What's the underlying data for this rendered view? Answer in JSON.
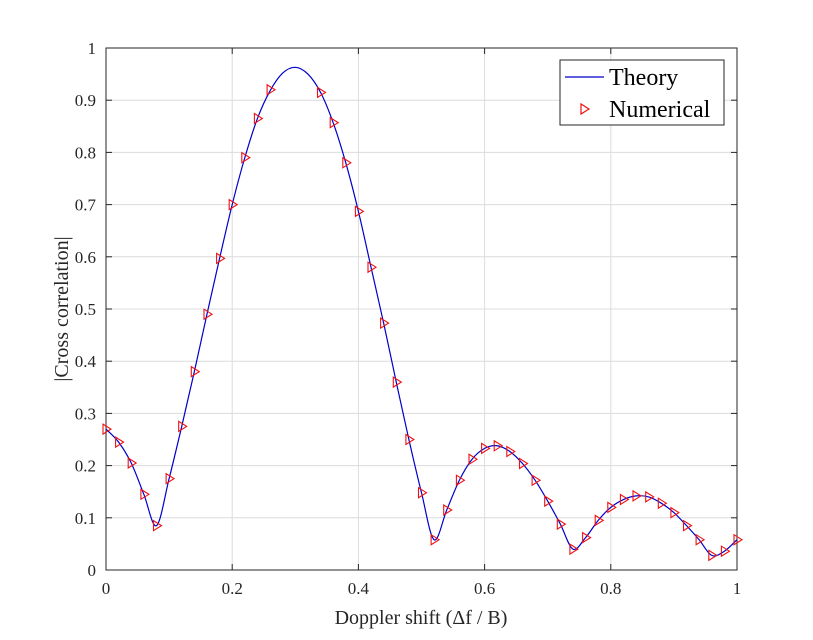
{
  "chart_data": {
    "type": "line",
    "title": "",
    "xlabel": "Doppler shift (Δf / B)",
    "ylabel": "|Cross correlation|",
    "xlim": [
      0,
      1
    ],
    "ylim": [
      0,
      1
    ],
    "x_ticks": [
      0,
      0.2,
      0.4,
      0.6,
      0.8,
      1
    ],
    "x_tick_labels": [
      "0",
      "0.2",
      "0.4",
      "0.6",
      "0.8",
      "1"
    ],
    "y_ticks": [
      0,
      0.1,
      0.2,
      0.3,
      0.4,
      0.5,
      0.6,
      0.7,
      0.8,
      0.9,
      1
    ],
    "y_tick_labels": [
      "0",
      "0.1",
      "0.2",
      "0.3",
      "0.4",
      "0.5",
      "0.6",
      "0.7",
      "0.8",
      "0.9",
      "1"
    ],
    "grid": true,
    "legend_position": "top-right",
    "series": [
      {
        "name": "Theory",
        "style": "line",
        "color": "#0000cc",
        "x": [
          0,
          0.02,
          0.04,
          0.06,
          0.08,
          0.1,
          0.12,
          0.14,
          0.16,
          0.18,
          0.2,
          0.22,
          0.24,
          0.26,
          0.28,
          0.3,
          0.32,
          0.34,
          0.36,
          0.38,
          0.4,
          0.42,
          0.44,
          0.46,
          0.48,
          0.5,
          0.52,
          0.54,
          0.56,
          0.58,
          0.6,
          0.62,
          0.64,
          0.66,
          0.68,
          0.7,
          0.72,
          0.74,
          0.76,
          0.78,
          0.8,
          0.82,
          0.84,
          0.86,
          0.88,
          0.9,
          0.92,
          0.94,
          0.96,
          0.98,
          1.0
        ],
        "y": [
          0.27,
          0.245,
          0.205,
          0.145,
          0.085,
          0.175,
          0.275,
          0.38,
          0.49,
          0.597,
          0.7,
          0.79,
          0.865,
          0.918,
          0.952,
          0.963,
          0.95,
          0.915,
          0.857,
          0.78,
          0.687,
          0.58,
          0.473,
          0.36,
          0.25,
          0.148,
          0.058,
          0.115,
          0.172,
          0.212,
          0.233,
          0.238,
          0.227,
          0.204,
          0.172,
          0.132,
          0.088,
          0.04,
          0.062,
          0.095,
          0.12,
          0.135,
          0.142,
          0.14,
          0.128,
          0.11,
          0.085,
          0.058,
          0.028,
          0.036,
          0.058
        ]
      },
      {
        "name": "Numerical",
        "style": "marker",
        "marker": "triangle-right",
        "color": "#ee1111",
        "x": [
          0,
          0.02,
          0.04,
          0.06,
          0.08,
          0.1,
          0.12,
          0.14,
          0.16,
          0.18,
          0.2,
          0.22,
          0.24,
          0.26,
          0.34,
          0.36,
          0.38,
          0.4,
          0.42,
          0.44,
          0.46,
          0.48,
          0.5,
          0.52,
          0.54,
          0.56,
          0.58,
          0.6,
          0.62,
          0.64,
          0.66,
          0.68,
          0.7,
          0.72,
          0.74,
          0.76,
          0.78,
          0.8,
          0.82,
          0.84,
          0.86,
          0.88,
          0.9,
          0.92,
          0.94,
          0.96,
          0.98,
          1.0
        ],
        "y": [
          0.27,
          0.245,
          0.205,
          0.145,
          0.085,
          0.175,
          0.275,
          0.38,
          0.49,
          0.597,
          0.7,
          0.79,
          0.865,
          0.92,
          0.915,
          0.857,
          0.78,
          0.687,
          0.58,
          0.473,
          0.36,
          0.25,
          0.148,
          0.058,
          0.115,
          0.172,
          0.212,
          0.233,
          0.238,
          0.227,
          0.204,
          0.172,
          0.132,
          0.088,
          0.04,
          0.062,
          0.095,
          0.12,
          0.135,
          0.142,
          0.14,
          0.128,
          0.11,
          0.085,
          0.058,
          0.028,
          0.036,
          0.058
        ]
      }
    ]
  }
}
